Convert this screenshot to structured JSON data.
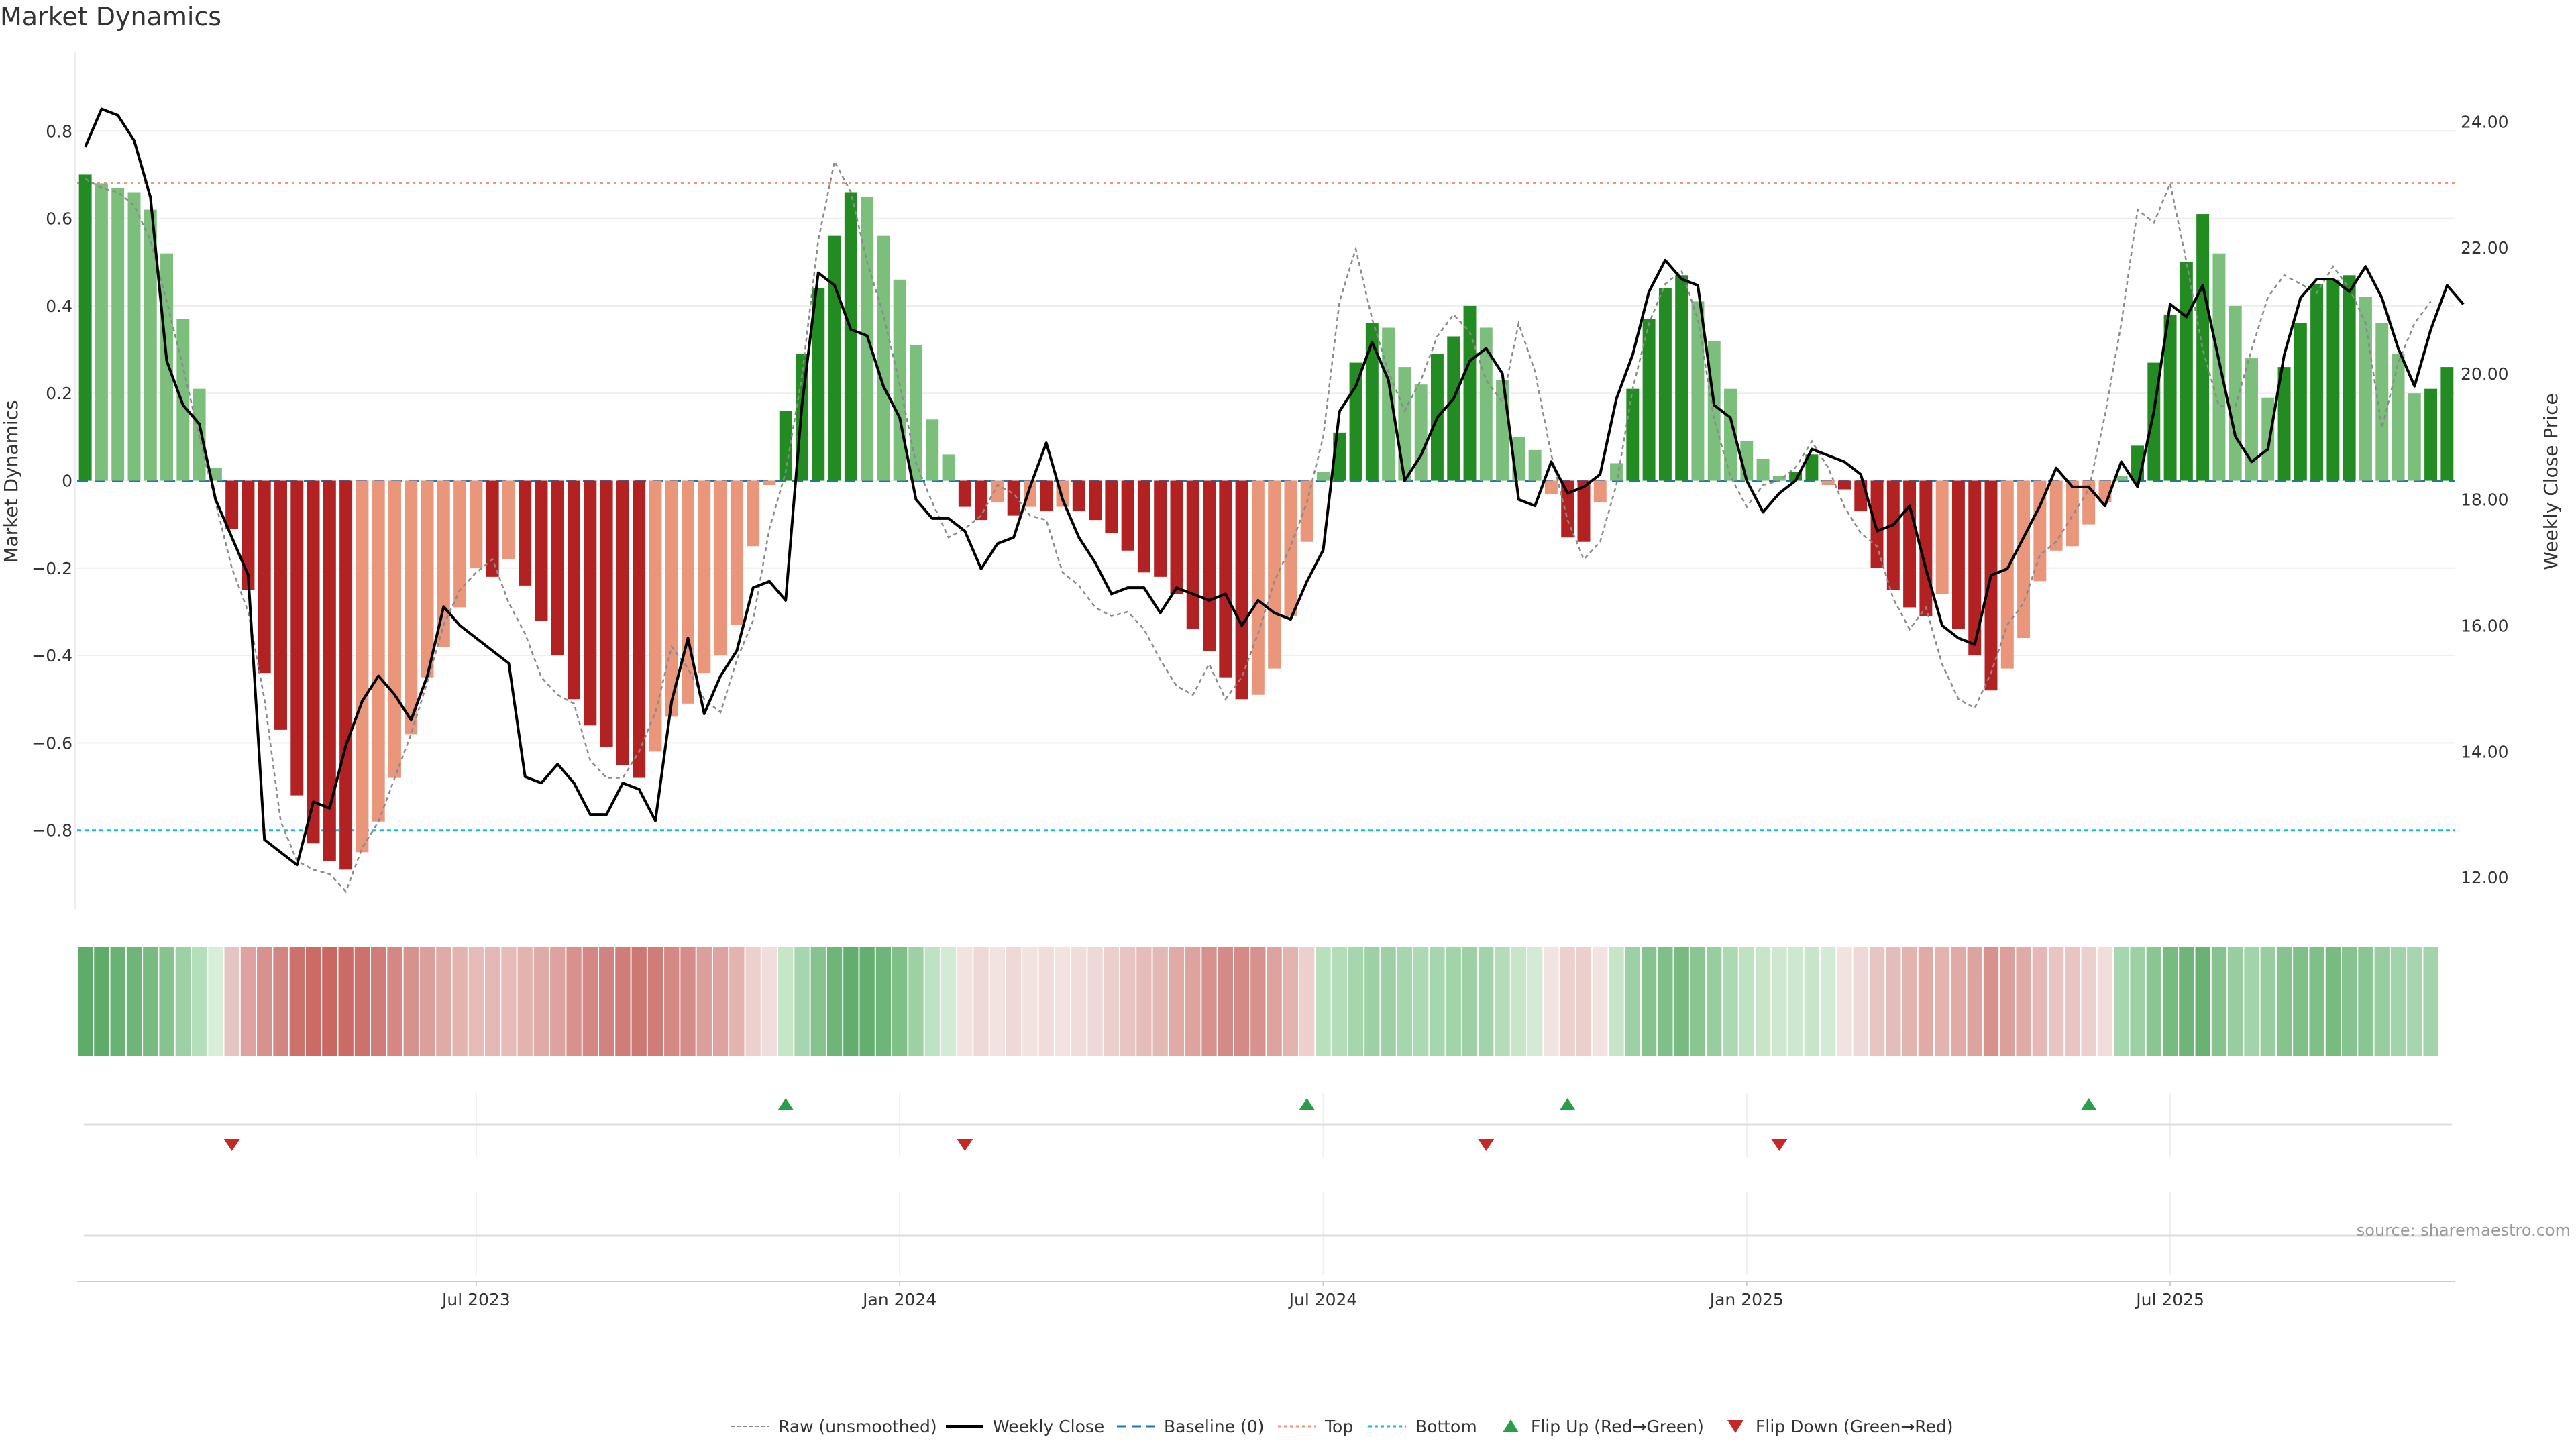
{
  "chart_data": {
    "type": "bar",
    "title": "Market Dynamics",
    "ylabel_left": "Market Dynamics",
    "ylabel_right": "Weekly Close Price",
    "ylim_left": [
      -0.98,
      0.98
    ],
    "ylim_right": [
      11.5,
      25.1
    ],
    "y_ticks_left": [
      0.8,
      0.6,
      0.4,
      0.2,
      0,
      -0.2,
      -0.4,
      -0.6,
      -0.8
    ],
    "y_tick_labels_left": [
      "0.8",
      "0.6",
      "0.4",
      "0.2",
      "0",
      "−0.2",
      "−0.4",
      "−0.6",
      "−0.8"
    ],
    "y_ticks_right": [
      24,
      22,
      20,
      18,
      16,
      14,
      12
    ],
    "y_tick_labels_right": [
      "24.00",
      "22.00",
      "20.00",
      "18.00",
      "16.00",
      "14.00",
      "12.00"
    ],
    "x_ticks": [
      {
        "week": 24,
        "label": "Jul 2023"
      },
      {
        "week": 50,
        "label": "Jan 2024"
      },
      {
        "week": 76,
        "label": "Jul 2024"
      },
      {
        "week": 102,
        "label": "Jan 2025"
      },
      {
        "week": 128,
        "label": "Jul 2025"
      }
    ],
    "baseline": 0,
    "top_level": 0.68,
    "bottom_level": -0.8,
    "source": "source: sharemaestro.com",
    "legend": [
      "Raw (unsmoothed)",
      "Weekly Close",
      "Baseline (0)",
      "Top",
      "Bottom",
      "Flip Up (Red→Green)",
      "Flip Down (Green→Red)"
    ],
    "bars": [
      0.7,
      0.68,
      0.67,
      0.66,
      0.62,
      0.52,
      0.37,
      0.21,
      0.03,
      -0.11,
      -0.25,
      -0.44,
      -0.57,
      -0.72,
      -0.83,
      -0.87,
      -0.89,
      -0.85,
      -0.78,
      -0.68,
      -0.58,
      -0.45,
      -0.38,
      -0.29,
      -0.2,
      -0.22,
      -0.18,
      -0.24,
      -0.32,
      -0.4,
      -0.5,
      -0.56,
      -0.61,
      -0.65,
      -0.68,
      -0.62,
      -0.54,
      -0.51,
      -0.44,
      -0.4,
      -0.33,
      -0.15,
      -0.01,
      0.16,
      0.29,
      0.44,
      0.56,
      0.66,
      0.65,
      0.56,
      0.46,
      0.31,
      0.14,
      0.06,
      -0.06,
      -0.09,
      -0.05,
      -0.08,
      -0.06,
      -0.07,
      -0.06,
      -0.07,
      -0.09,
      -0.12,
      -0.16,
      -0.21,
      -0.22,
      -0.26,
      -0.34,
      -0.39,
      -0.45,
      -0.5,
      -0.49,
      -0.43,
      -0.31,
      -0.14,
      0.02,
      0.11,
      0.27,
      0.36,
      0.35,
      0.26,
      0.22,
      0.29,
      0.33,
      0.4,
      0.35,
      0.23,
      0.1,
      0.07,
      -0.03,
      -0.13,
      -0.14,
      -0.05,
      0.04,
      0.21,
      0.37,
      0.44,
      0.47,
      0.41,
      0.32,
      0.21,
      0.09,
      0.05,
      0.01,
      0.02,
      0.06,
      -0.01,
      -0.02,
      -0.07,
      -0.2,
      -0.25,
      -0.29,
      -0.31,
      -0.26,
      -0.34,
      -0.4,
      -0.48,
      -0.43,
      -0.36,
      -0.23,
      -0.16,
      -0.15,
      -0.1,
      -0.05,
      0.01,
      0.08,
      0.27,
      0.38,
      0.5,
      0.61,
      0.52,
      0.4,
      0.28,
      0.19,
      0.26,
      0.36,
      0.45,
      0.46,
      0.47,
      0.42,
      0.36,
      0.29,
      0.2,
      0.21,
      0.26
    ],
    "weekly_close": [
      23.6,
      24.2,
      24.1,
      23.7,
      22.8,
      20.2,
      19.5,
      19.2,
      18.0,
      17.4,
      16.8,
      12.6,
      12.4,
      12.2,
      13.2,
      13.1,
      14.1,
      14.8,
      15.2,
      14.9,
      14.5,
      15.2,
      16.3,
      16.0,
      15.8,
      15.6,
      15.4,
      13.6,
      13.5,
      13.8,
      13.5,
      13.0,
      13.0,
      13.5,
      13.4,
      12.9,
      14.8,
      15.8,
      14.6,
      15.2,
      15.6,
      16.6,
      16.7,
      16.4,
      19.5,
      21.6,
      21.4,
      20.7,
      20.6,
      19.8,
      19.3,
      18.0,
      17.7,
      17.7,
      17.5,
      16.9,
      17.3,
      17.4,
      18.2,
      18.9,
      18.0,
      17.4,
      17.0,
      16.5,
      16.6,
      16.6,
      16.2,
      16.6,
      16.5,
      16.4,
      16.5,
      16.0,
      16.4,
      16.2,
      16.1,
      16.7,
      17.2,
      19.4,
      19.8,
      20.5,
      19.9,
      18.3,
      18.7,
      19.3,
      19.6,
      20.2,
      20.4,
      20.0,
      18.0,
      17.9,
      18.6,
      18.1,
      18.2,
      18.4,
      19.6,
      20.3,
      21.3,
      21.8,
      21.5,
      21.4,
      19.5,
      19.3,
      18.3,
      17.8,
      18.1,
      18.3,
      18.8,
      18.7,
      18.6,
      18.4,
      17.5,
      17.6,
      17.9,
      16.9,
      16.0,
      15.8,
      15.7,
      16.8,
      16.9,
      17.4,
      17.9,
      18.5,
      18.2,
      18.2,
      17.9,
      18.6,
      18.2,
      19.4,
      21.1,
      20.9,
      21.4,
      20.2,
      19.0,
      18.6,
      18.8,
      20.3,
      21.2,
      21.5,
      21.5,
      21.3,
      21.7,
      21.2,
      20.4,
      19.8,
      20.7,
      21.4,
      21.1
    ],
    "raw": [
      0.69,
      0.67,
      0.66,
      0.63,
      0.55,
      0.41,
      0.26,
      0.1,
      -0.05,
      -0.2,
      -0.3,
      -0.5,
      -0.78,
      -0.87,
      -0.89,
      -0.9,
      -0.94,
      -0.84,
      -0.78,
      -0.68,
      -0.58,
      -0.46,
      -0.33,
      -0.25,
      -0.21,
      -0.18,
      -0.28,
      -0.35,
      -0.45,
      -0.49,
      -0.51,
      -0.64,
      -0.68,
      -0.68,
      -0.62,
      -0.53,
      -0.38,
      -0.43,
      -0.5,
      -0.53,
      -0.41,
      -0.32,
      -0.11,
      0.02,
      0.24,
      0.55,
      0.73,
      0.66,
      0.5,
      0.38,
      0.22,
      0.04,
      -0.05,
      -0.13,
      -0.11,
      -0.08,
      -0.01,
      -0.03,
      -0.08,
      -0.09,
      -0.21,
      -0.24,
      -0.29,
      -0.31,
      -0.3,
      -0.34,
      -0.41,
      -0.47,
      -0.49,
      -0.42,
      -0.5,
      -0.45,
      -0.35,
      -0.23,
      -0.15,
      -0.05,
      0.1,
      0.41,
      0.53,
      0.37,
      0.25,
      0.16,
      0.23,
      0.33,
      0.38,
      0.34,
      0.23,
      0.18,
      0.36,
      0.25,
      0.06,
      -0.09,
      -0.18,
      -0.14,
      -0.01,
      0.21,
      0.36,
      0.45,
      0.48,
      0.37,
      0.14,
      0.01,
      -0.06,
      -0.01,
      0.0,
      0.03,
      0.09,
      0.03,
      -0.06,
      -0.12,
      -0.15,
      -0.27,
      -0.34,
      -0.29,
      -0.42,
      -0.5,
      -0.52,
      -0.44,
      -0.33,
      -0.28,
      -0.17,
      -0.14,
      -0.08,
      -0.02,
      0.15,
      0.36,
      0.62,
      0.59,
      0.68,
      0.5,
      0.3,
      0.17,
      0.17,
      0.3,
      0.42,
      0.47,
      0.45,
      0.43,
      0.49,
      0.44,
      0.36,
      0.12,
      0.27,
      0.36,
      0.41
    ],
    "strips": [
      {
        "color": "#5fac6a"
      },
      {
        "color": "#5fac6a"
      },
      {
        "color": "#6ab274"
      },
      {
        "color": "#6fb579"
      },
      {
        "color": "#78bb81"
      },
      {
        "color": "#86c38f"
      },
      {
        "color": "#9dd1a5"
      },
      {
        "color": "#b5dfba"
      },
      {
        "color": "#d9eed8"
      },
      {
        "color": "#e3c5c3"
      },
      {
        "color": "#dea3a0"
      },
      {
        "color": "#d8928e"
      },
      {
        "color": "#d38581"
      },
      {
        "color": "#cc716c"
      },
      {
        "color": "#ca6b66"
      },
      {
        "color": "#c96863"
      },
      {
        "color": "#ca6b66"
      },
      {
        "color": "#cc716c"
      },
      {
        "color": "#d07c78"
      },
      {
        "color": "#d48783"
      },
      {
        "color": "#d8928e"
      },
      {
        "color": "#dba09c"
      },
      {
        "color": "#e0aba7"
      },
      {
        "color": "#e3b3b0"
      },
      {
        "color": "#e6bbb8"
      },
      {
        "color": "#e5b8b5"
      },
      {
        "color": "#e6bbb8"
      },
      {
        "color": "#e3b3b0"
      },
      {
        "color": "#e0aba7"
      },
      {
        "color": "#dca39f"
      },
      {
        "color": "#d8928e"
      },
      {
        "color": "#d48783"
      },
      {
        "color": "#d18380"
      },
      {
        "color": "#d07c78"
      },
      {
        "color": "#ce7873"
      },
      {
        "color": "#d07c78"
      },
      {
        "color": "#d48783"
      },
      {
        "color": "#d68c88"
      },
      {
        "color": "#dba09c"
      },
      {
        "color": "#dea3a0"
      },
      {
        "color": "#e3b3b0"
      },
      {
        "color": "#ecd0ce"
      },
      {
        "color": "#f1dddc"
      },
      {
        "color": "#c6e6c7"
      },
      {
        "color": "#a5d6ad"
      },
      {
        "color": "#86c38f"
      },
      {
        "color": "#6fb579"
      },
      {
        "color": "#63ae6e"
      },
      {
        "color": "#64ae6f"
      },
      {
        "color": "#6fb579"
      },
      {
        "color": "#7fbf88"
      },
      {
        "color": "#9dd1a5"
      },
      {
        "color": "#bfe3c2"
      },
      {
        "color": "#d3ebd4"
      },
      {
        "color": "#f2e2e0"
      },
      {
        "color": "#efd9d7"
      },
      {
        "color": "#f2e2e0"
      },
      {
        "color": "#efd9d7"
      },
      {
        "color": "#f2e2e0"
      },
      {
        "color": "#f0dcda"
      },
      {
        "color": "#f2e2e0"
      },
      {
        "color": "#f0dcda"
      },
      {
        "color": "#efd9d7"
      },
      {
        "color": "#ebcfcc"
      },
      {
        "color": "#e8c5c2"
      },
      {
        "color": "#e4bcb9"
      },
      {
        "color": "#e3b9b6"
      },
      {
        "color": "#e0aba7"
      },
      {
        "color": "#dca39f"
      },
      {
        "color": "#d8928e"
      },
      {
        "color": "#d48a86"
      },
      {
        "color": "#d48a86"
      },
      {
        "color": "#d8928e"
      },
      {
        "color": "#dca39f"
      },
      {
        "color": "#e3b3b0"
      },
      {
        "color": "#ecd0ce"
      },
      {
        "color": "#b9e0bd"
      },
      {
        "color": "#b2ddb7"
      },
      {
        "color": "#a5d6ad"
      },
      {
        "color": "#9dd1a5"
      },
      {
        "color": "#9dd1a5"
      },
      {
        "color": "#a5d6ad"
      },
      {
        "color": "#abd9b1"
      },
      {
        "color": "#a5d6ad"
      },
      {
        "color": "#a2d4aa"
      },
      {
        "color": "#9dd1a5"
      },
      {
        "color": "#a2d4aa"
      },
      {
        "color": "#b2ddb7"
      },
      {
        "color": "#c6e6c7"
      },
      {
        "color": "#d3ebd4"
      },
      {
        "color": "#f2e2e0"
      },
      {
        "color": "#ecd0ce"
      },
      {
        "color": "#ebcfcc"
      },
      {
        "color": "#f2e2e0"
      },
      {
        "color": "#c6e6c7"
      },
      {
        "color": "#9dd1a5"
      },
      {
        "color": "#86c38f"
      },
      {
        "color": "#7fbf88"
      },
      {
        "color": "#78bb81"
      },
      {
        "color": "#8ac692"
      },
      {
        "color": "#97cd9f"
      },
      {
        "color": "#abd9b1"
      },
      {
        "color": "#bfe3c2"
      },
      {
        "color": "#c6e6c7"
      },
      {
        "color": "#cde8ce"
      },
      {
        "color": "#cde8ce"
      },
      {
        "color": "#c6e6c7"
      },
      {
        "color": "#d3ebd4"
      },
      {
        "color": "#f2e2e0"
      },
      {
        "color": "#efd9d7"
      },
      {
        "color": "#e8c5c2"
      },
      {
        "color": "#e4bcb9"
      },
      {
        "color": "#e3b3b0"
      },
      {
        "color": "#e0aba7"
      },
      {
        "color": "#e3b3b0"
      },
      {
        "color": "#e0aba7"
      },
      {
        "color": "#dca39f"
      },
      {
        "color": "#d8928e"
      },
      {
        "color": "#dba09c"
      },
      {
        "color": "#e0aba7"
      },
      {
        "color": "#e5b8b5"
      },
      {
        "color": "#e8c5c2"
      },
      {
        "color": "#e8c5c2"
      },
      {
        "color": "#ecd0ce"
      },
      {
        "color": "#f1dddc"
      },
      {
        "color": "#a5d6ad"
      },
      {
        "color": "#9dd1a5"
      },
      {
        "color": "#8ac692"
      },
      {
        "color": "#78bb81"
      },
      {
        "color": "#6fb579"
      },
      {
        "color": "#6ab274"
      },
      {
        "color": "#86c38f"
      },
      {
        "color": "#97cd9f"
      },
      {
        "color": "#a2d4aa"
      },
      {
        "color": "#97cd9f"
      },
      {
        "color": "#86c38f"
      },
      {
        "color": "#7fbf88"
      },
      {
        "color": "#7fbf88"
      },
      {
        "color": "#78bb81"
      },
      {
        "color": "#86c38f"
      },
      {
        "color": "#8ac692"
      },
      {
        "color": "#97cd9f"
      },
      {
        "color": "#a2d4aa"
      },
      {
        "color": "#a5d6ad"
      },
      {
        "color": "#a2d4aa"
      }
    ],
    "flip_up_weeks": [
      43,
      75,
      91,
      123
    ],
    "flip_down_weeks": [
      9,
      54,
      86,
      104
    ],
    "colors": {
      "strong_green": "#228b22",
      "light_green": "#7cbf7c",
      "strong_red": "#b22222",
      "light_red": "#e9967a",
      "weekly_close": "#000000",
      "raw": "#8a8a8a",
      "baseline": "#1f77b4",
      "top": "#e9967a",
      "bottom": "#17becf",
      "flip_up": "#2a9d4a",
      "flip_down": "#c62828"
    }
  }
}
